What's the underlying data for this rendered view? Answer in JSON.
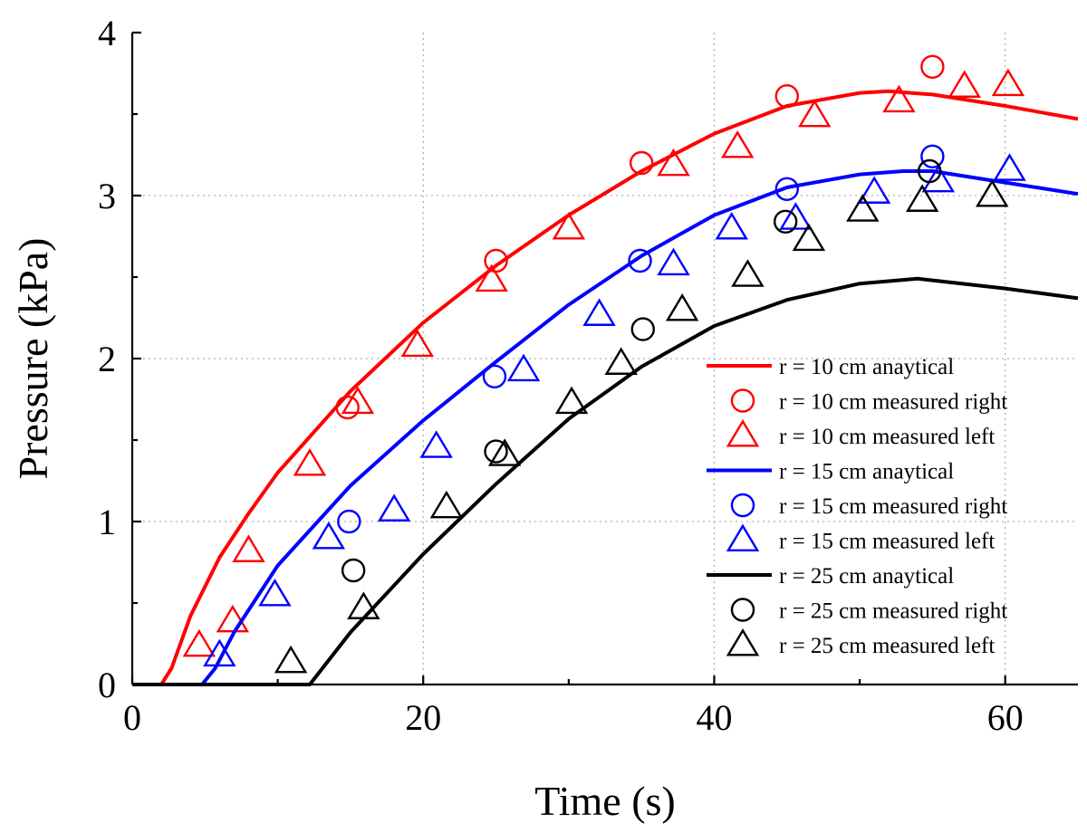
{
  "chart_data": {
    "type": "line",
    "title": "",
    "xlabel": "Time (s)",
    "ylabel": "Pressure (kPa)",
    "xlim": [
      0,
      65
    ],
    "ylim": [
      0,
      4
    ],
    "xticks": [
      0,
      20,
      40,
      60
    ],
    "yticks": [
      0,
      1,
      2,
      3,
      4
    ],
    "grid": true,
    "legend_position": "bottom-right",
    "series": [
      {
        "name": "r = 10 cm anaytical",
        "kind": "line",
        "color": "#ff0000",
        "points": [
          [
            0,
            0
          ],
          [
            2,
            0
          ],
          [
            2.7,
            0.1
          ],
          [
            4,
            0.42
          ],
          [
            6,
            0.78
          ],
          [
            8,
            1.05
          ],
          [
            10,
            1.3
          ],
          [
            15,
            1.8
          ],
          [
            20,
            2.22
          ],
          [
            25,
            2.57
          ],
          [
            30,
            2.88
          ],
          [
            35,
            3.15
          ],
          [
            40,
            3.38
          ],
          [
            45,
            3.55
          ],
          [
            50,
            3.63
          ],
          [
            52,
            3.64
          ],
          [
            55,
            3.62
          ],
          [
            60,
            3.55
          ],
          [
            65,
            3.47
          ]
        ]
      },
      {
        "name": "r = 10 cm measured right",
        "kind": "circle",
        "color": "#ff0000",
        "points": [
          [
            14.8,
            1.7
          ],
          [
            25,
            2.6
          ],
          [
            35,
            3.2
          ],
          [
            45,
            3.61
          ],
          [
            55,
            3.79
          ]
        ]
      },
      {
        "name": "r = 10 cm measured left",
        "kind": "triangle",
        "color": "#ff0000",
        "points": [
          [
            4.6,
            0.24
          ],
          [
            6.9,
            0.39
          ],
          [
            8,
            0.82
          ],
          [
            12.2,
            1.35
          ],
          [
            15.5,
            1.73
          ],
          [
            19.6,
            2.08
          ],
          [
            24.7,
            2.48
          ],
          [
            30,
            2.8
          ],
          [
            37.2,
            3.19
          ],
          [
            41.6,
            3.3
          ],
          [
            46.9,
            3.49
          ],
          [
            52.7,
            3.58
          ],
          [
            57.2,
            3.67
          ],
          [
            60.2,
            3.68
          ]
        ]
      },
      {
        "name": "r = 15 cm anaytical",
        "kind": "line",
        "color": "#0000ff",
        "points": [
          [
            0,
            0
          ],
          [
            4.8,
            0
          ],
          [
            5.7,
            0.1
          ],
          [
            7,
            0.32
          ],
          [
            10,
            0.73
          ],
          [
            15,
            1.22
          ],
          [
            20,
            1.62
          ],
          [
            25,
            1.98
          ],
          [
            30,
            2.33
          ],
          [
            35,
            2.63
          ],
          [
            40,
            2.88
          ],
          [
            45,
            3.05
          ],
          [
            50,
            3.13
          ],
          [
            53,
            3.15
          ],
          [
            55,
            3.15
          ],
          [
            60,
            3.08
          ],
          [
            65,
            3.01
          ]
        ]
      },
      {
        "name": "r = 15 cm measured right",
        "kind": "circle",
        "color": "#0000ff",
        "points": [
          [
            14.9,
            1.0
          ],
          [
            24.9,
            1.89
          ],
          [
            34.9,
            2.6
          ],
          [
            45,
            3.04
          ],
          [
            55,
            3.24
          ]
        ]
      },
      {
        "name": "r = 15 cm measured left",
        "kind": "triangle",
        "color": "#0000ff",
        "points": [
          [
            6,
            0.18
          ],
          [
            9.8,
            0.55
          ],
          [
            13.5,
            0.9
          ],
          [
            18,
            1.07
          ],
          [
            20.9,
            1.46
          ],
          [
            26.9,
            1.93
          ],
          [
            32.1,
            2.27
          ],
          [
            37.2,
            2.58
          ],
          [
            41.2,
            2.8
          ],
          [
            45.6,
            2.86
          ],
          [
            51,
            3.02
          ],
          [
            55.4,
            3.09
          ],
          [
            60.3,
            3.16
          ]
        ]
      },
      {
        "name": "r = 25 cm anaytical",
        "kind": "line",
        "color": "#000000",
        "points": [
          [
            0,
            0
          ],
          [
            12.2,
            0
          ],
          [
            15,
            0.32
          ],
          [
            20,
            0.8
          ],
          [
            25,
            1.23
          ],
          [
            30,
            1.63
          ],
          [
            35,
            1.95
          ],
          [
            40,
            2.2
          ],
          [
            45,
            2.36
          ],
          [
            50,
            2.46
          ],
          [
            54,
            2.49
          ],
          [
            55,
            2.48
          ],
          [
            60,
            2.43
          ],
          [
            65,
            2.37
          ]
        ]
      },
      {
        "name": "r = 25 cm measured right",
        "kind": "circle",
        "color": "#000000",
        "points": [
          [
            15.2,
            0.7
          ],
          [
            25,
            1.43
          ],
          [
            35.1,
            2.18
          ],
          [
            44.9,
            2.84
          ],
          [
            54.8,
            3.15
          ]
        ]
      },
      {
        "name": "r = 25 cm measured left",
        "kind": "triangle",
        "color": "#000000",
        "points": [
          [
            10.9,
            0.14
          ],
          [
            15.9,
            0.47
          ],
          [
            21.6,
            1.09
          ],
          [
            25.6,
            1.41
          ],
          [
            30.2,
            1.73
          ],
          [
            33.6,
            1.97
          ],
          [
            37.8,
            2.3
          ],
          [
            42.3,
            2.51
          ],
          [
            46.5,
            2.73
          ],
          [
            50.2,
            2.91
          ],
          [
            54.3,
            2.97
          ],
          [
            59.1,
            3.0
          ]
        ]
      }
    ]
  }
}
